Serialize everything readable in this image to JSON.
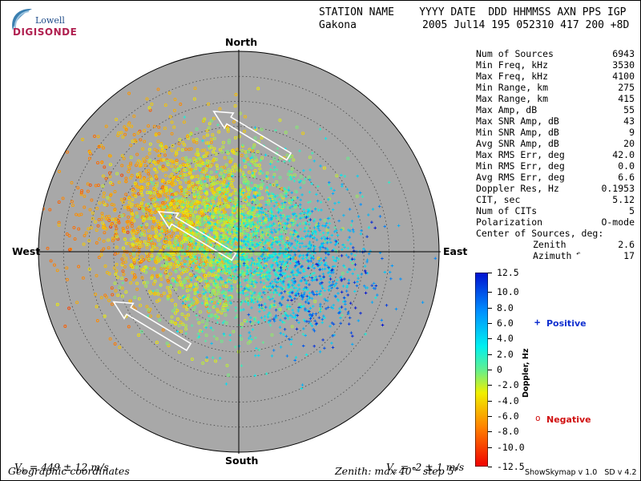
{
  "logo": {
    "line1": "Lowell",
    "line2": "DIGISONDE"
  },
  "header": {
    "line1": "STATION NAME    YYYY DATE  DDD HHMMSS AXN PPS IGP",
    "line2_station": "Gakona",
    "line2_values": "2005 Jul14 195 052310 417 200 +8D"
  },
  "parameters": [
    {
      "label": "Num of Sources",
      "value": "6943"
    },
    {
      "label": "Min Freq, kHz",
      "value": "3530"
    },
    {
      "label": "Max Freq, kHz",
      "value": "4100"
    },
    {
      "label": "Min Range, km",
      "value": "275"
    },
    {
      "label": "Max Range, km",
      "value": "415"
    },
    {
      "label": "Max Amp, dB",
      "value": "55"
    },
    {
      "label": "Max SNR Amp, dB",
      "value": "43"
    },
    {
      "label": "Min SNR Amp, dB",
      "value": "9"
    },
    {
      "label": "Avg SNR Amp, dB",
      "value": "20"
    },
    {
      "label": "Max RMS Err, deg",
      "value": "42.0"
    },
    {
      "label": "Min RMS Err, deg",
      "value": "0.0"
    },
    {
      "label": "Avg RMS Err, deg",
      "value": "6.6"
    },
    {
      "label": "Doppler Res, Hz",
      "value": "0.1953"
    },
    {
      "label": "CIT, sec",
      "value": "5.12"
    },
    {
      "label": "Num of CITs",
      "value": "5"
    },
    {
      "label": "Polarization",
      "value": "O-mode"
    }
  ],
  "center": {
    "title": "Center of Sources, deg:",
    "zenith_label": "Zenith",
    "zenith_value": "2.6",
    "azimuth_label": "Azimuth",
    "azimuth_value": "17"
  },
  "bottom": {
    "vh": "V",
    "vh_sub": "h",
    "vh_value": " = 449 ± 12 m/s",
    "vz": "V",
    "vz_sub": "z",
    "vz_value": " = -2 ± 1 m/s",
    "coords": "Geographic coordinates",
    "zenith_info": "Zenith: max 40°  step 5°",
    "version": "ShowSkymap v 1.0   SD v 4.2"
  },
  "legend": {
    "positive": "Positive",
    "negative": "Negative"
  },
  "colorbar": {
    "label": "Doppler, Hz",
    "ticks": [
      "12.5",
      "10.0",
      "8.0",
      "6.0",
      "4.0",
      "2.0",
      "0",
      "-2.0",
      "-4.0",
      "-6.0",
      "-8.0",
      "-10.0",
      "-12.5"
    ],
    "tick_values": [
      12.5,
      10,
      8,
      6,
      4,
      2,
      0,
      -2,
      -4,
      -6,
      -8,
      -10,
      -12.5
    ]
  },
  "chart_data": {
    "type": "scatter",
    "title": "",
    "projection": "polar-skymap",
    "directions": {
      "north": "North",
      "south": "South",
      "east": "East",
      "west": "West"
    },
    "zenith_max_deg": 40,
    "zenith_step_deg": 5,
    "clusters": [
      {
        "x_deg": -12,
        "y_deg": 8,
        "spread_deg": 10,
        "doppler_mean": -3.5,
        "count": 1500
      },
      {
        "x_deg": -3,
        "y_deg": 3,
        "spread_deg": 10,
        "doppler_mean": -0.5,
        "count": 1500
      },
      {
        "x_deg": 7,
        "y_deg": -2,
        "spread_deg": 9,
        "doppler_mean": 3.0,
        "count": 1100
      },
      {
        "x_deg": 15,
        "y_deg": -7,
        "spread_deg": 6,
        "doppler_mean": 8.0,
        "count": 180
      }
    ],
    "arrows": [
      {
        "from": [
          10,
          19
        ],
        "to": [
          -5,
          28
        ]
      },
      {
        "from": [
          -1,
          -1
        ],
        "to": [
          -16,
          8
        ]
      },
      {
        "from": [
          -10,
          -19
        ],
        "to": [
          -25,
          -10
        ]
      }
    ],
    "colors": {
      "disk": "#a8a8a8",
      "grid": "#444444",
      "positive": "#1030d0",
      "negative": "#d01010"
    }
  }
}
